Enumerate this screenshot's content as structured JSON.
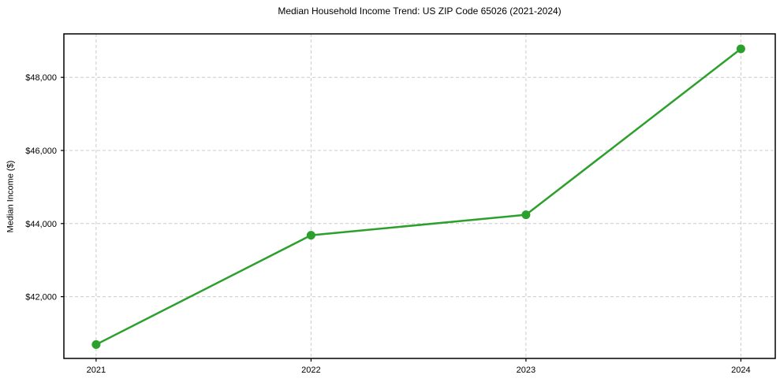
{
  "figure": {
    "background": "#ffffff"
  },
  "chart_data": {
    "type": "line",
    "title": "Median Household Income Trend: US ZIP Code 65026 (2021-2024)",
    "xlabel": "",
    "ylabel": "Median Income ($)",
    "x": [
      2021,
      2022,
      2023,
      2024
    ],
    "x_tick_labels": [
      "2021",
      "2022",
      "2023",
      "2024"
    ],
    "series": [
      {
        "name": "Median Household Income",
        "values": [
          40690,
          43680,
          44240,
          48780
        ],
        "color": "#2ca02c",
        "marker": "circle",
        "line_width": 2.5,
        "marker_radius": 5.5
      }
    ],
    "y_ticks": [
      42000,
      44000,
      46000,
      48000
    ],
    "y_tick_labels": [
      "$42,000",
      "$44,000",
      "$46,000",
      "$48,000"
    ],
    "xlim": [
      2020.85,
      2024.16
    ],
    "ylim": [
      40310,
      49190
    ],
    "grid": true,
    "grid_style": "dashed",
    "legend_position": "none",
    "colors": {
      "line": "#2ca02c",
      "grid": "#cccccc",
      "spine": "#000000",
      "tick": "#000000",
      "text": "#000000"
    }
  }
}
